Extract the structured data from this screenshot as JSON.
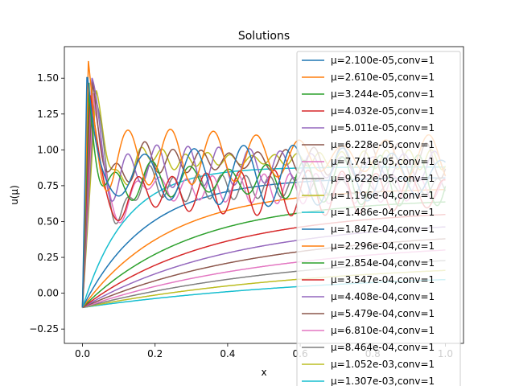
{
  "chart_data": {
    "type": "line",
    "title": "Solutions",
    "xlabel": "x",
    "ylabel": "u(μ)",
    "xlim": [
      -0.05,
      1.05
    ],
    "ylim": [
      -0.35,
      1.72
    ],
    "xticks": [
      "0.0",
      "0.2",
      "0.4",
      "0.6",
      "0.8",
      "1.0"
    ],
    "xtick_values": [
      0.0,
      0.2,
      0.4,
      0.6,
      0.8,
      1.0
    ],
    "yticks": [
      "−0.25",
      "0.00",
      "0.25",
      "0.50",
      "0.75",
      "1.00",
      "1.25",
      "1.50"
    ],
    "ytick_values": [
      -0.25,
      0.0,
      0.25,
      0.5,
      0.75,
      1.0,
      1.25,
      1.5
    ],
    "legend_position": "top-right",
    "grid": false,
    "series": [
      {
        "name": "μ=2.100e-05,conv=1",
        "color": "#1f77b4",
        "mu": 2.1e-05
      },
      {
        "name": "μ=2.610e-05,conv=1",
        "color": "#ff7f0e",
        "mu": 2.61e-05
      },
      {
        "name": "μ=3.244e-05,conv=1",
        "color": "#2ca02c",
        "mu": 3.244e-05
      },
      {
        "name": "μ=4.032e-05,conv=1",
        "color": "#d62728",
        "mu": 4.032e-05
      },
      {
        "name": "μ=5.011e-05,conv=1",
        "color": "#9467bd",
        "mu": 5.011e-05
      },
      {
        "name": "μ=6.228e-05,conv=1",
        "color": "#8c564b",
        "mu": 6.228e-05
      },
      {
        "name": "μ=7.741e-05,conv=1",
        "color": "#e377c2",
        "mu": 7.741e-05
      },
      {
        "name": "μ=9.622e-05,conv=1",
        "color": "#7f7f7f",
        "mu": 9.622e-05
      },
      {
        "name": "μ=1.196e-04,conv=1",
        "color": "#bcbd22",
        "mu": 0.0001196
      },
      {
        "name": "μ=1.486e-04,conv=1",
        "color": "#17becf",
        "mu": 0.0001486
      },
      {
        "name": "μ=1.847e-04,conv=1",
        "color": "#1f77b4",
        "mu": 0.0001847
      },
      {
        "name": "μ=2.296e-04,conv=1",
        "color": "#ff7f0e",
        "mu": 0.0002296
      },
      {
        "name": "μ=2.854e-04,conv=1",
        "color": "#2ca02c",
        "mu": 0.0002854
      },
      {
        "name": "μ=3.547e-04,conv=1",
        "color": "#d62728",
        "mu": 0.0003547
      },
      {
        "name": "μ=4.408e-04,conv=1",
        "color": "#9467bd",
        "mu": 0.0004408
      },
      {
        "name": "μ=5.479e-04,conv=1",
        "color": "#8c564b",
        "mu": 0.0005479
      },
      {
        "name": "μ=6.810e-04,conv=1",
        "color": "#e377c2",
        "mu": 0.000681
      },
      {
        "name": "μ=8.464e-04,conv=1",
        "color": "#7f7f7f",
        "mu": 0.0008464
      },
      {
        "name": "μ=1.052e-03,conv=1",
        "color": "#bcbd22",
        "mu": 0.001052
      },
      {
        "name": "μ=1.307e-03,conv=1",
        "color": "#17becf",
        "mu": 0.001307
      }
    ]
  }
}
